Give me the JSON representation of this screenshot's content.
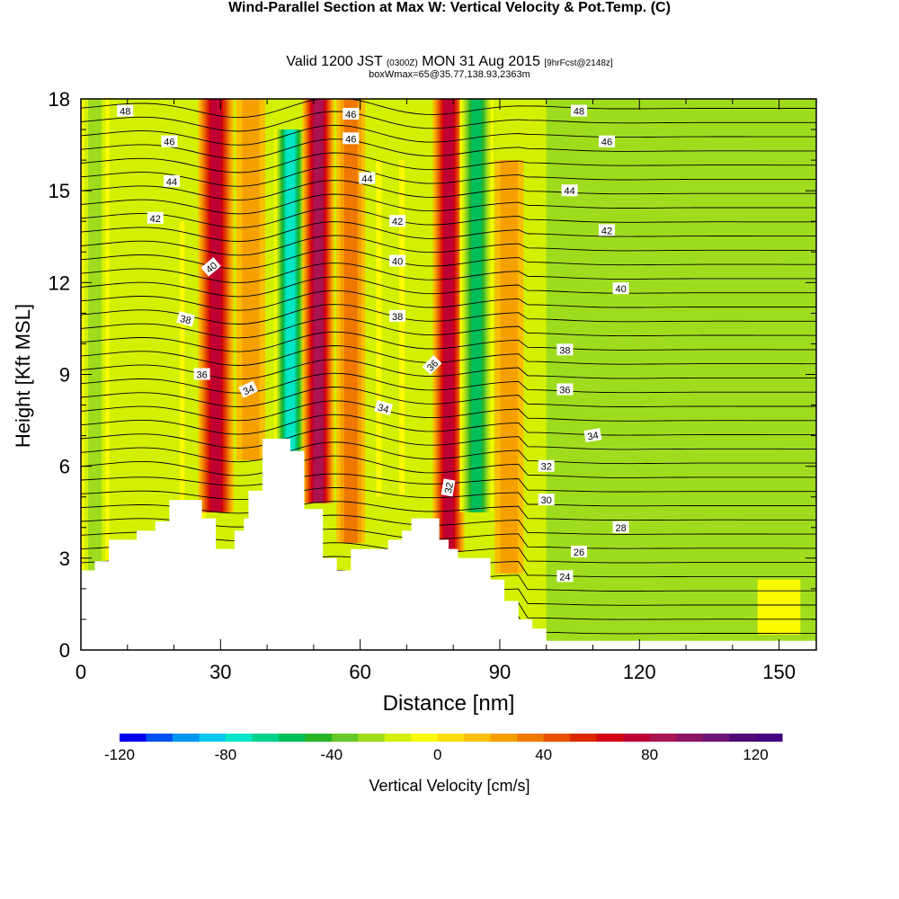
{
  "header": {
    "title": "Wind-Parallel Section at Max W: Vertical Velocity & Pot.Temp.",
    "copyright": "(C)",
    "valid_prefix": "Valid 1200 JST",
    "valid_utc": "(0300Z)",
    "valid_date": "MON 31 Aug 2015",
    "forecast": "[9hrFcst@2148z]",
    "box_info": "boxWmax=65@35.77,138.93,2363m"
  },
  "chart_data": {
    "type": "heatmap",
    "xlabel": "Distance [nm]",
    "ylabel": "Height [Kft MSL]",
    "xlim": [
      0,
      158
    ],
    "ylim": [
      0,
      18
    ],
    "x_ticks": [
      "0",
      "30",
      "60",
      "90",
      "120",
      "150"
    ],
    "y_ticks": [
      "0",
      "3",
      "6",
      "9",
      "12",
      "15",
      "18"
    ],
    "colorbar": {
      "label": "Vertical Velocity [cm/s]",
      "range": [
        -120,
        130
      ],
      "tick_labels": [
        "-120",
        "-80",
        "-40",
        "0",
        "40",
        "80",
        "120"
      ],
      "colors": [
        "#0000f0",
        "#0050f0",
        "#0096f0",
        "#00c8f0",
        "#00e6c8",
        "#00d28c",
        "#00be5a",
        "#28b428",
        "#64c828",
        "#a0dc1e",
        "#d2f000",
        "#fafa00",
        "#fadc00",
        "#fabe00",
        "#f5a000",
        "#f07800",
        "#e65000",
        "#dc2800",
        "#d20014",
        "#be0032",
        "#aa1450",
        "#8c1464",
        "#6e1478",
        "#500a78",
        "#460082"
      ]
    },
    "velocity_bands": [
      {
        "x": 3,
        "w": 2.5,
        "yb": 2.6,
        "yt": 18,
        "v": -25
      },
      {
        "x": 24,
        "w": 2.2,
        "yb": 4.3,
        "yt": 14,
        "v": -20
      },
      {
        "x": 29,
        "w": 3.2,
        "yb": 4.5,
        "yt": 18,
        "v": 70
      },
      {
        "x": 36.5,
        "w": 2.5,
        "yb": 6.2,
        "yt": 18,
        "v": 20
      },
      {
        "x": 45,
        "w": 2.8,
        "yb": 6.5,
        "yt": 17,
        "v": -100
      },
      {
        "x": 51,
        "w": 2.8,
        "yb": 4.8,
        "yt": 18,
        "v": 85
      },
      {
        "x": 58,
        "w": 2.5,
        "yb": 3.5,
        "yt": 18,
        "v": 30
      },
      {
        "x": 66.5,
        "w": 2.5,
        "yb": 5.0,
        "yt": 16,
        "v": -20
      },
      {
        "x": 79,
        "w": 2.8,
        "yb": 3.2,
        "yt": 18,
        "v": 70
      },
      {
        "x": 85,
        "w": 3.0,
        "yb": 4.5,
        "yt": 18,
        "v": -55
      },
      {
        "x": 92,
        "w": 2.5,
        "yb": 2.5,
        "yt": 16,
        "v": 20
      },
      {
        "x": 150,
        "w": 4.0,
        "yb": 0.5,
        "yt": 2.3,
        "v": -10
      }
    ],
    "terrain_height_kft": [
      {
        "x": 0,
        "h": 2.6
      },
      {
        "x": 3,
        "h": 2.9
      },
      {
        "x": 6,
        "h": 3.6
      },
      {
        "x": 12,
        "h": 3.9
      },
      {
        "x": 16,
        "h": 4.2
      },
      {
        "x": 19,
        "h": 4.9
      },
      {
        "x": 26,
        "h": 4.3
      },
      {
        "x": 29,
        "h": 3.3
      },
      {
        "x": 33,
        "h": 3.9
      },
      {
        "x": 35,
        "h": 4.3
      },
      {
        "x": 36,
        "h": 5.2
      },
      {
        "x": 39,
        "h": 6.9
      },
      {
        "x": 45,
        "h": 6.5
      },
      {
        "x": 48,
        "h": 4.6
      },
      {
        "x": 52,
        "h": 3.0
      },
      {
        "x": 55,
        "h": 2.6
      },
      {
        "x": 58,
        "h": 3.3
      },
      {
        "x": 66,
        "h": 3.6
      },
      {
        "x": 69,
        "h": 3.9
      },
      {
        "x": 71,
        "h": 4.3
      },
      {
        "x": 77,
        "h": 3.6
      },
      {
        "x": 79,
        "h": 3.3
      },
      {
        "x": 81,
        "h": 3.0
      },
      {
        "x": 88,
        "h": 2.3
      },
      {
        "x": 91,
        "h": 1.6
      },
      {
        "x": 94,
        "h": 1.0
      },
      {
        "x": 97,
        "h": 0.7
      },
      {
        "x": 100,
        "h": 0.3
      },
      {
        "x": 158,
        "h": 0.3
      }
    ],
    "theta_contour_labels": [
      {
        "text": "48",
        "x": 9.5,
        "y": 17.6,
        "rot": 0
      },
      {
        "text": "46",
        "x": 19,
        "y": 16.6,
        "rot": 0
      },
      {
        "text": "44",
        "x": 19.5,
        "y": 15.3,
        "rot": 0
      },
      {
        "text": "42",
        "x": 16,
        "y": 14.1,
        "rot": 0
      },
      {
        "text": "40",
        "x": 28,
        "y": 12.5,
        "rot": -40
      },
      {
        "text": "38",
        "x": 22.5,
        "y": 10.8,
        "rot": 15
      },
      {
        "text": "36",
        "x": 26,
        "y": 9.0,
        "rot": 0
      },
      {
        "text": "34",
        "x": 36,
        "y": 8.5,
        "rot": -25
      },
      {
        "text": "46",
        "x": 58,
        "y": 17.5,
        "rot": 0
      },
      {
        "text": "46",
        "x": 58,
        "y": 16.7,
        "rot": 0
      },
      {
        "text": "44",
        "x": 61.5,
        "y": 15.4,
        "rot": 0
      },
      {
        "text": "42",
        "x": 68,
        "y": 14.0,
        "rot": 0
      },
      {
        "text": "40",
        "x": 68,
        "y": 12.7,
        "rot": 0
      },
      {
        "text": "38",
        "x": 68,
        "y": 10.9,
        "rot": 0
      },
      {
        "text": "36",
        "x": 75.5,
        "y": 9.3,
        "rot": -45
      },
      {
        "text": "34",
        "x": 65,
        "y": 7.9,
        "rot": 15
      },
      {
        "text": "32",
        "x": 79,
        "y": 5.3,
        "rot": -80
      },
      {
        "text": "48",
        "x": 107,
        "y": 17.6,
        "rot": 0
      },
      {
        "text": "46",
        "x": 113,
        "y": 16.6,
        "rot": 0
      },
      {
        "text": "44",
        "x": 105,
        "y": 15.0,
        "rot": 0
      },
      {
        "text": "42",
        "x": 113,
        "y": 13.7,
        "rot": 0
      },
      {
        "text": "40",
        "x": 116,
        "y": 11.8,
        "rot": 0
      },
      {
        "text": "38",
        "x": 104,
        "y": 9.8,
        "rot": 0
      },
      {
        "text": "36",
        "x": 104,
        "y": 8.5,
        "rot": 0
      },
      {
        "text": "34",
        "x": 110,
        "y": 7.0,
        "rot": -10
      },
      {
        "text": "32",
        "x": 100,
        "y": 6.0,
        "rot": 0
      },
      {
        "text": "30",
        "x": 100,
        "y": 4.9,
        "rot": 0
      },
      {
        "text": "28",
        "x": 116,
        "y": 4.0,
        "rot": 0
      },
      {
        "text": "26",
        "x": 107,
        "y": 3.2,
        "rot": 0
      },
      {
        "text": "24",
        "x": 104,
        "y": 2.4,
        "rot": 0
      }
    ]
  }
}
